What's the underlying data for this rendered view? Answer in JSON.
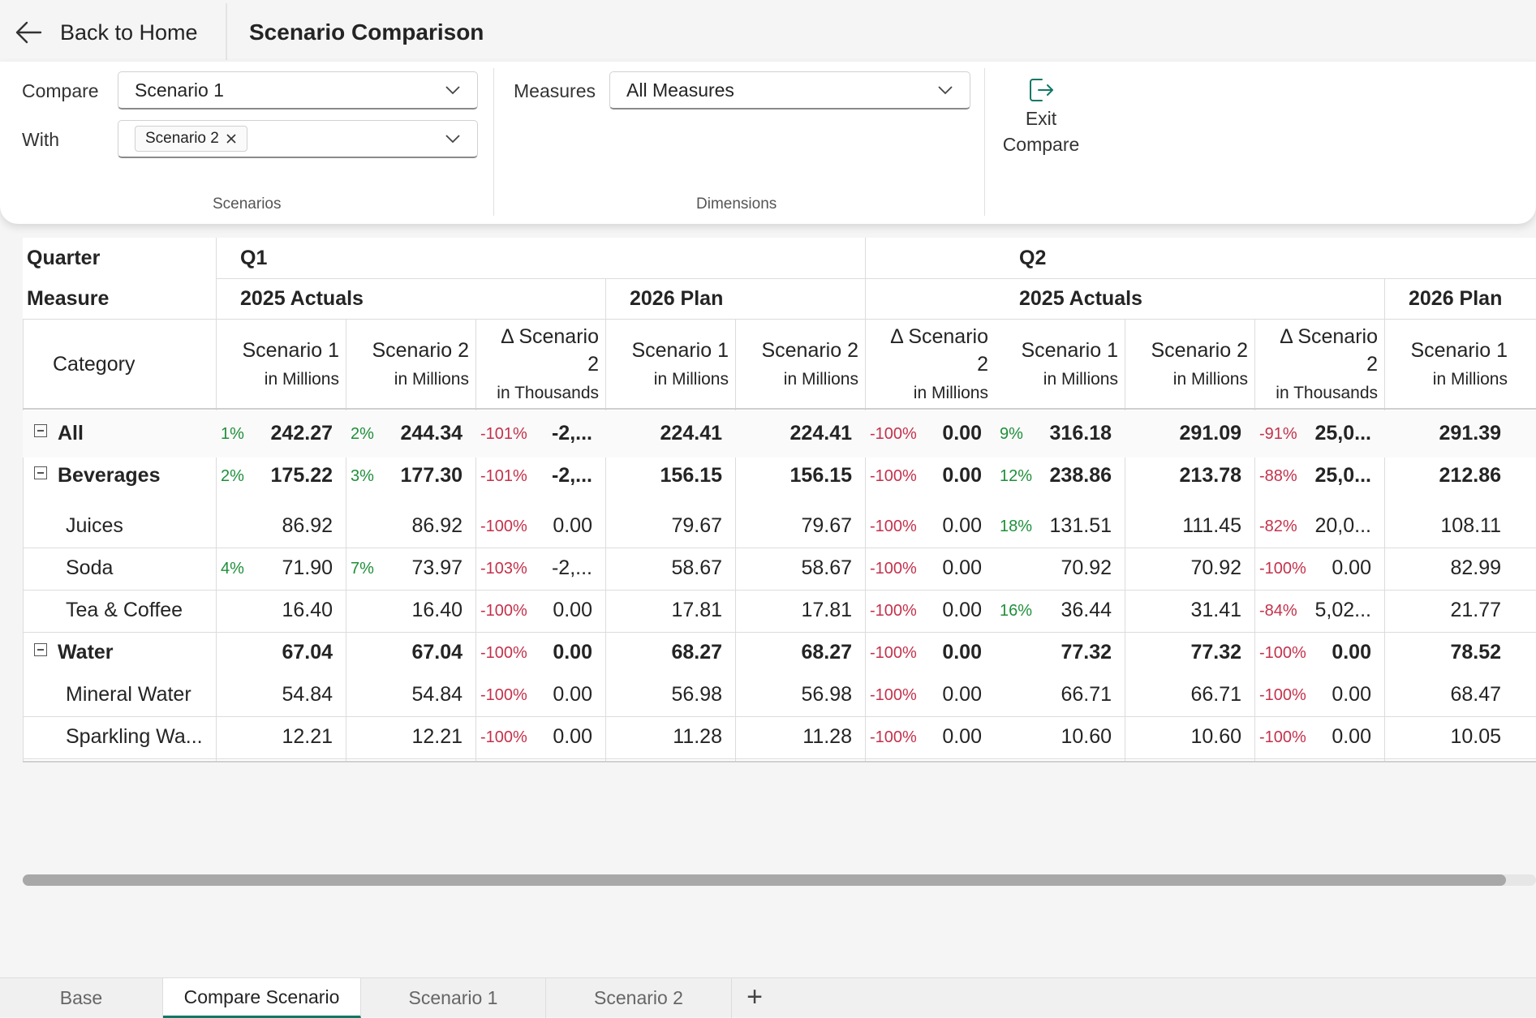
{
  "header": {
    "back_label": "Back to Home",
    "title": "Scenario Comparison"
  },
  "ribbon": {
    "compare_label": "Compare",
    "compare_value": "Scenario 1",
    "with_label": "With",
    "with_chip": "Scenario 2",
    "scenarios_group": "Scenarios",
    "measures_label": "Measures",
    "measures_value": "All Measures",
    "dimensions_group": "Dimensions",
    "exit_line1": "Exit",
    "exit_line2": "Compare"
  },
  "grid": {
    "quarter_label": "Quarter",
    "measure_label": "Measure",
    "category_label": "Category",
    "quarters": [
      "Q1",
      "Q2"
    ],
    "measures": [
      "2025 Actuals",
      "2026 Plan",
      "2025 Actuals",
      "2026 Plan"
    ],
    "columns": [
      {
        "l1": "Scenario 1",
        "l2": "in Millions"
      },
      {
        "l1": "Scenario 2",
        "l2": "in Millions"
      },
      {
        "l1": "Δ Scenario",
        "l1b": "2",
        "l2": "in Thousands"
      },
      {
        "l1": "Scenario 1",
        "l2": "in Millions"
      },
      {
        "l1": "Scenario 2",
        "l2": "in Millions"
      },
      {
        "l1": "Δ Scenario",
        "l1b": "2",
        "l2": "in Millions"
      },
      {
        "l1": "Scenario 1",
        "l2": "in Millions"
      },
      {
        "l1": "Scenario 2",
        "l2": "in Millions"
      },
      {
        "l1": "Δ Scenario",
        "l1b": "2",
        "l2": "in Thousands"
      },
      {
        "l1": "Scenario 1",
        "l2": "in Millions"
      }
    ],
    "rows": [
      {
        "label": "All",
        "level": 0,
        "bold": true,
        "expander": true,
        "cells": [
          [
            "1%",
            "pos",
            "242.27"
          ],
          [
            "2%",
            "pos",
            "244.34"
          ],
          [
            "-101%",
            "neg",
            "-2,..."
          ],
          [
            "",
            "",
            "224.41"
          ],
          [
            "",
            "",
            "224.41"
          ],
          [
            "-100%",
            "neg",
            "0.00"
          ],
          [
            "9%",
            "pos",
            "316.18"
          ],
          [
            "",
            "",
            "291.09"
          ],
          [
            "-91%",
            "neg",
            "25,0..."
          ],
          [
            "",
            "",
            "291.39"
          ]
        ]
      },
      {
        "label": "Beverages",
        "level": 0,
        "bold": true,
        "expander": true,
        "cells": [
          [
            "2%",
            "pos",
            "175.22"
          ],
          [
            "3%",
            "pos",
            "177.30"
          ],
          [
            "-101%",
            "neg",
            "-2,..."
          ],
          [
            "",
            "",
            "156.15"
          ],
          [
            "",
            "",
            "156.15"
          ],
          [
            "-100%",
            "neg",
            "0.00"
          ],
          [
            "12%",
            "pos",
            "238.86"
          ],
          [
            "",
            "",
            "213.78"
          ],
          [
            "-88%",
            "neg",
            "25,0..."
          ],
          [
            "",
            "",
            "212.86"
          ]
        ]
      },
      {
        "label": "Juices",
        "level": 1,
        "bold": false,
        "expander": false,
        "cells": [
          [
            "",
            "",
            "86.92"
          ],
          [
            "",
            "",
            "86.92"
          ],
          [
            "-100%",
            "neg",
            "0.00"
          ],
          [
            "",
            "",
            "79.67"
          ],
          [
            "",
            "",
            "79.67"
          ],
          [
            "-100%",
            "neg",
            "0.00"
          ],
          [
            "18%",
            "pos",
            "131.51"
          ],
          [
            "",
            "",
            "111.45"
          ],
          [
            "-82%",
            "neg",
            "20,0..."
          ],
          [
            "",
            "",
            "108.11"
          ]
        ]
      },
      {
        "label": "Soda",
        "level": 1,
        "bold": false,
        "expander": false,
        "cells": [
          [
            "4%",
            "pos",
            "71.90"
          ],
          [
            "7%",
            "pos",
            "73.97"
          ],
          [
            "-103%",
            "neg",
            "-2,..."
          ],
          [
            "",
            "",
            "58.67"
          ],
          [
            "",
            "",
            "58.67"
          ],
          [
            "-100%",
            "neg",
            "0.00"
          ],
          [
            "",
            "",
            "70.92"
          ],
          [
            "",
            "",
            "70.92"
          ],
          [
            "-100%",
            "neg",
            "0.00"
          ],
          [
            "",
            "",
            "82.99"
          ]
        ]
      },
      {
        "label": "Tea & Coffee",
        "level": 1,
        "bold": false,
        "expander": false,
        "cells": [
          [
            "",
            "",
            "16.40"
          ],
          [
            "",
            "",
            "16.40"
          ],
          [
            "-100%",
            "neg",
            "0.00"
          ],
          [
            "",
            "",
            "17.81"
          ],
          [
            "",
            "",
            "17.81"
          ],
          [
            "-100%",
            "neg",
            "0.00"
          ],
          [
            "16%",
            "pos",
            "36.44"
          ],
          [
            "",
            "",
            "31.41"
          ],
          [
            "-84%",
            "neg",
            "5,02..."
          ],
          [
            "",
            "",
            "21.77"
          ]
        ]
      },
      {
        "label": "Water",
        "level": 0,
        "bold": true,
        "expander": true,
        "cells": [
          [
            "",
            "",
            "67.04"
          ],
          [
            "",
            "",
            "67.04"
          ],
          [
            "-100%",
            "neg",
            "0.00"
          ],
          [
            "",
            "",
            "68.27"
          ],
          [
            "",
            "",
            "68.27"
          ],
          [
            "-100%",
            "neg",
            "0.00"
          ],
          [
            "",
            "",
            "77.32"
          ],
          [
            "",
            "",
            "77.32"
          ],
          [
            "-100%",
            "neg",
            "0.00"
          ],
          [
            "",
            "",
            "78.52"
          ]
        ]
      },
      {
        "label": "Mineral Water",
        "level": 1,
        "bold": false,
        "expander": false,
        "cells": [
          [
            "",
            "",
            "54.84"
          ],
          [
            "",
            "",
            "54.84"
          ],
          [
            "-100%",
            "neg",
            "0.00"
          ],
          [
            "",
            "",
            "56.98"
          ],
          [
            "",
            "",
            "56.98"
          ],
          [
            "-100%",
            "neg",
            "0.00"
          ],
          [
            "",
            "",
            "66.71"
          ],
          [
            "",
            "",
            "66.71"
          ],
          [
            "-100%",
            "neg",
            "0.00"
          ],
          [
            "",
            "",
            "68.47"
          ]
        ]
      },
      {
        "label": "Sparkling Wa...",
        "level": 1,
        "bold": false,
        "expander": false,
        "cells": [
          [
            "",
            "",
            "12.21"
          ],
          [
            "",
            "",
            "12.21"
          ],
          [
            "-100%",
            "neg",
            "0.00"
          ],
          [
            "",
            "",
            "11.28"
          ],
          [
            "",
            "",
            "11.28"
          ],
          [
            "-100%",
            "neg",
            "0.00"
          ],
          [
            "",
            "",
            "10.60"
          ],
          [
            "",
            "",
            "10.60"
          ],
          [
            "-100%",
            "neg",
            "0.00"
          ],
          [
            "",
            "",
            "10.05"
          ]
        ]
      }
    ]
  },
  "tabs": [
    {
      "label": "Base",
      "active": false
    },
    {
      "label": "Compare Scenario",
      "active": true
    },
    {
      "label": "Scenario 1",
      "active": false
    },
    {
      "label": "Scenario 2",
      "active": false
    }
  ],
  "colors": {
    "positive": "#1e8f3a",
    "negative": "#c4314b",
    "accent": "#117865"
  }
}
